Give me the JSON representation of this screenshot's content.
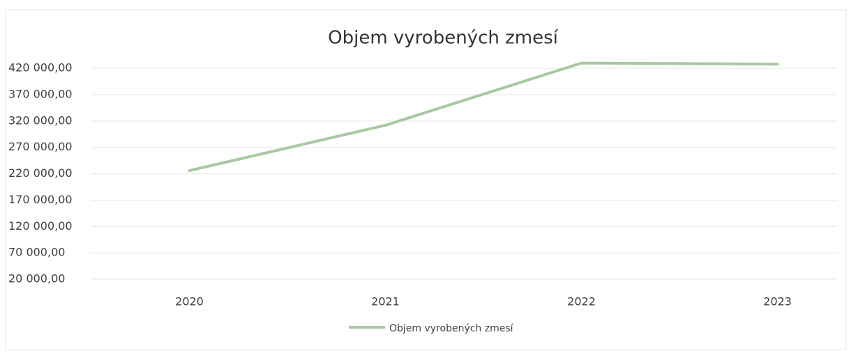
{
  "chart_data": {
    "type": "line",
    "title": "Objem vyrobených zmesí",
    "categories": [
      "2020",
      "2021",
      "2022",
      "2023"
    ],
    "series": [
      {
        "name": "Objem vyrobených zmesí",
        "color": "#a8c8a2",
        "values": [
          226000,
          312000,
          430000,
          428000
        ]
      }
    ],
    "ylim": [
      20000,
      440000
    ],
    "yticks": [
      {
        "value": 20000,
        "label": "20 000,00"
      },
      {
        "value": 70000,
        "label": "70 000,00"
      },
      {
        "value": 120000,
        "label": "120 000,00"
      },
      {
        "value": 170000,
        "label": "170 000,00"
      },
      {
        "value": 220000,
        "label": "220 000,00"
      },
      {
        "value": 270000,
        "label": "270 000,00"
      },
      {
        "value": 320000,
        "label": "320 000,00"
      },
      {
        "value": 370000,
        "label": "370 000,00"
      },
      {
        "value": 420000,
        "label": "420 000,00"
      }
    ],
    "grid": true,
    "legend": "bottom"
  }
}
